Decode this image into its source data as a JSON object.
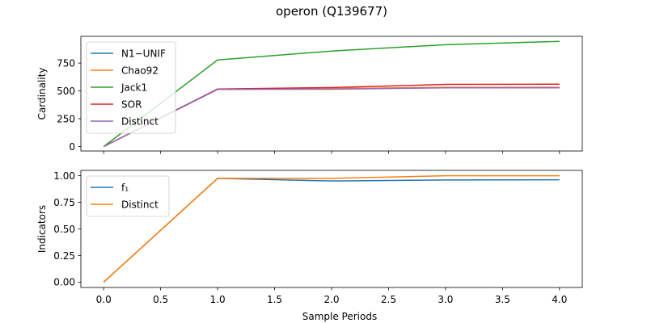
{
  "figure": {
    "title": "operon (Q139677)"
  },
  "chart_data": [
    {
      "type": "line",
      "ylabel": "Cardinality",
      "xlabel": "",
      "xlim": [
        -0.2,
        4.2
      ],
      "ylim": [
        -40,
        990
      ],
      "xticks": [
        0.0,
        0.5,
        1.0,
        1.5,
        2.0,
        2.5,
        3.0,
        3.5,
        4.0
      ],
      "xtick_labels_shown": false,
      "yticks": [
        0,
        250,
        500,
        750
      ],
      "ytick_labels": [
        "0",
        "250",
        "500",
        "750"
      ],
      "legend": "top-left",
      "grid": false,
      "x": [
        0,
        1,
        2,
        3,
        4
      ],
      "series": [
        {
          "name": "N1−UNIF",
          "color": "#1f77b4",
          "values": [
            0,
            515,
            520,
            530,
            530
          ]
        },
        {
          "name": "Chao92",
          "color": "#ff7f0e",
          "values": [
            0,
            515,
            520,
            532,
            532
          ]
        },
        {
          "name": "Jack1",
          "color": "#2ca02c",
          "values": [
            0,
            778,
            858,
            915,
            945
          ]
        },
        {
          "name": "SOR",
          "color": "#d62728",
          "values": [
            0,
            517,
            530,
            558,
            560
          ]
        },
        {
          "name": "Distinct",
          "color": "#9467bd",
          "values": [
            0,
            513,
            515,
            528,
            528
          ]
        }
      ]
    },
    {
      "type": "line",
      "ylabel": "Indicators",
      "xlabel": "Sample Periods",
      "xlim": [
        -0.2,
        4.2
      ],
      "ylim": [
        -0.05,
        1.05
      ],
      "xticks": [
        0.0,
        0.5,
        1.0,
        1.5,
        2.0,
        2.5,
        3.0,
        3.5,
        4.0
      ],
      "xtick_labels": [
        "0.0",
        "0.5",
        "1.0",
        "1.5",
        "2.0",
        "2.5",
        "3.0",
        "3.5",
        "4.0"
      ],
      "yticks": [
        0.0,
        0.25,
        0.5,
        0.75,
        1.0
      ],
      "ytick_labels": [
        "0.00",
        "0.25",
        "0.50",
        "0.75",
        "1.00"
      ],
      "legend": "top-left",
      "grid": false,
      "x": [
        0,
        1,
        2,
        3,
        4
      ],
      "series": [
        {
          "name": "f₁",
          "color": "#1f77b4",
          "values": [
            0,
            0.975,
            0.95,
            0.96,
            0.962
          ]
        },
        {
          "name": "Distinct",
          "color": "#ff7f0e",
          "values": [
            0,
            0.975,
            0.975,
            1.0,
            1.0
          ]
        }
      ]
    }
  ]
}
